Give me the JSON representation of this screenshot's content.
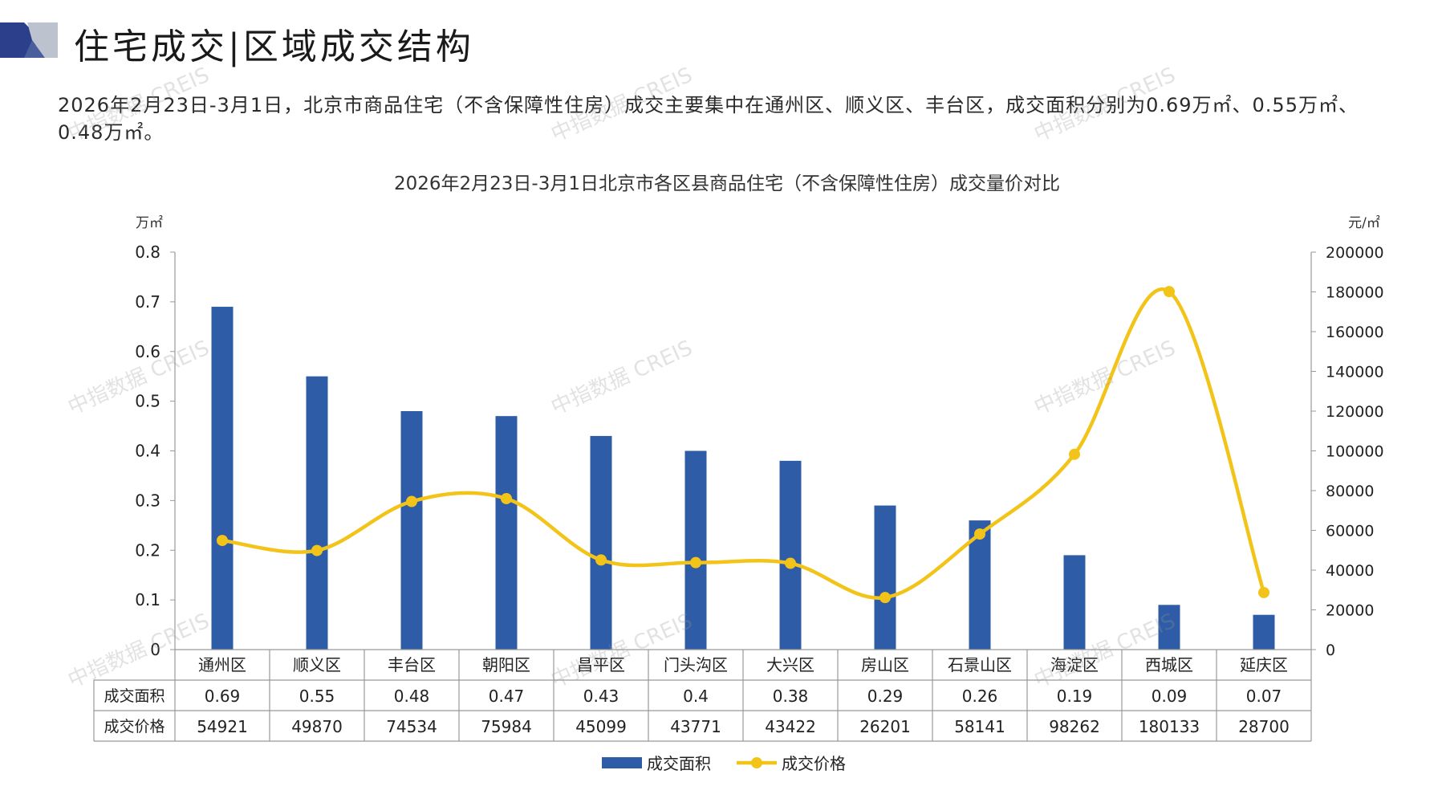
{
  "header": {
    "title": "住宅成交|区域成交结构"
  },
  "summary": {
    "text": "2026年2月23日-3月1日，北京市商品住宅（不含保障性住房）成交主要集中在通州区、顺义区、丰台区，成交面积分别为0.69万㎡、0.55万㎡、0.48万㎡。"
  },
  "watermark": {
    "text": "中指数据 CREIS"
  },
  "colors": {
    "bar": "#2e5ca6",
    "line": "#f2c41a",
    "title_deco_dark": "#2b3f8a",
    "title_deco_grey": "#bcc3cf"
  },
  "chart_data": {
    "type": "bar",
    "title": "2026年2月23日-3月1日北京市各区县商品住宅（不含保障性住房）成交量价对比",
    "y_left_unit": "万㎡",
    "y_right_unit": "元/㎡",
    "ylim_left": [
      0,
      0.8
    ],
    "ylim_right": [
      0,
      200000
    ],
    "y_left_ticks": [
      "0",
      "0.1",
      "0.2",
      "0.3",
      "0.4",
      "0.5",
      "0.6",
      "0.7",
      "0.8"
    ],
    "y_right_ticks": [
      "0",
      "20000",
      "40000",
      "60000",
      "80000",
      "100000",
      "120000",
      "140000",
      "160000",
      "180000",
      "200000"
    ],
    "categories": [
      "通州区",
      "顺义区",
      "丰台区",
      "朝阳区",
      "昌平区",
      "门头沟区",
      "大兴区",
      "房山区",
      "石景山区",
      "海淀区",
      "西城区",
      "延庆区"
    ],
    "series": [
      {
        "name": "成交面积",
        "type": "bar",
        "axis": "left",
        "values": [
          0.69,
          0.55,
          0.48,
          0.47,
          0.43,
          0.4,
          0.38,
          0.29,
          0.26,
          0.19,
          0.09,
          0.07
        ]
      },
      {
        "name": "成交价格",
        "type": "line",
        "axis": "right",
        "values": [
          54921,
          49870,
          74534,
          75984,
          45099,
          43771,
          43422,
          26201,
          58141,
          98262,
          180133,
          28700
        ]
      }
    ],
    "table_rows": [
      {
        "label": "成交面积",
        "values": [
          "0.69",
          "0.55",
          "0.48",
          "0.47",
          "0.43",
          "0.4",
          "0.38",
          "0.29",
          "0.26",
          "0.19",
          "0.09",
          "0.07"
        ]
      },
      {
        "label": "成交价格",
        "values": [
          "54921",
          "49870",
          "74534",
          "75984",
          "45099",
          "43771",
          "43422",
          "26201",
          "58141",
          "98262",
          "180133",
          "28700"
        ]
      }
    ],
    "legend": [
      "成交面积",
      "成交价格"
    ],
    "legend_position": "bottom-center",
    "grid": false
  }
}
